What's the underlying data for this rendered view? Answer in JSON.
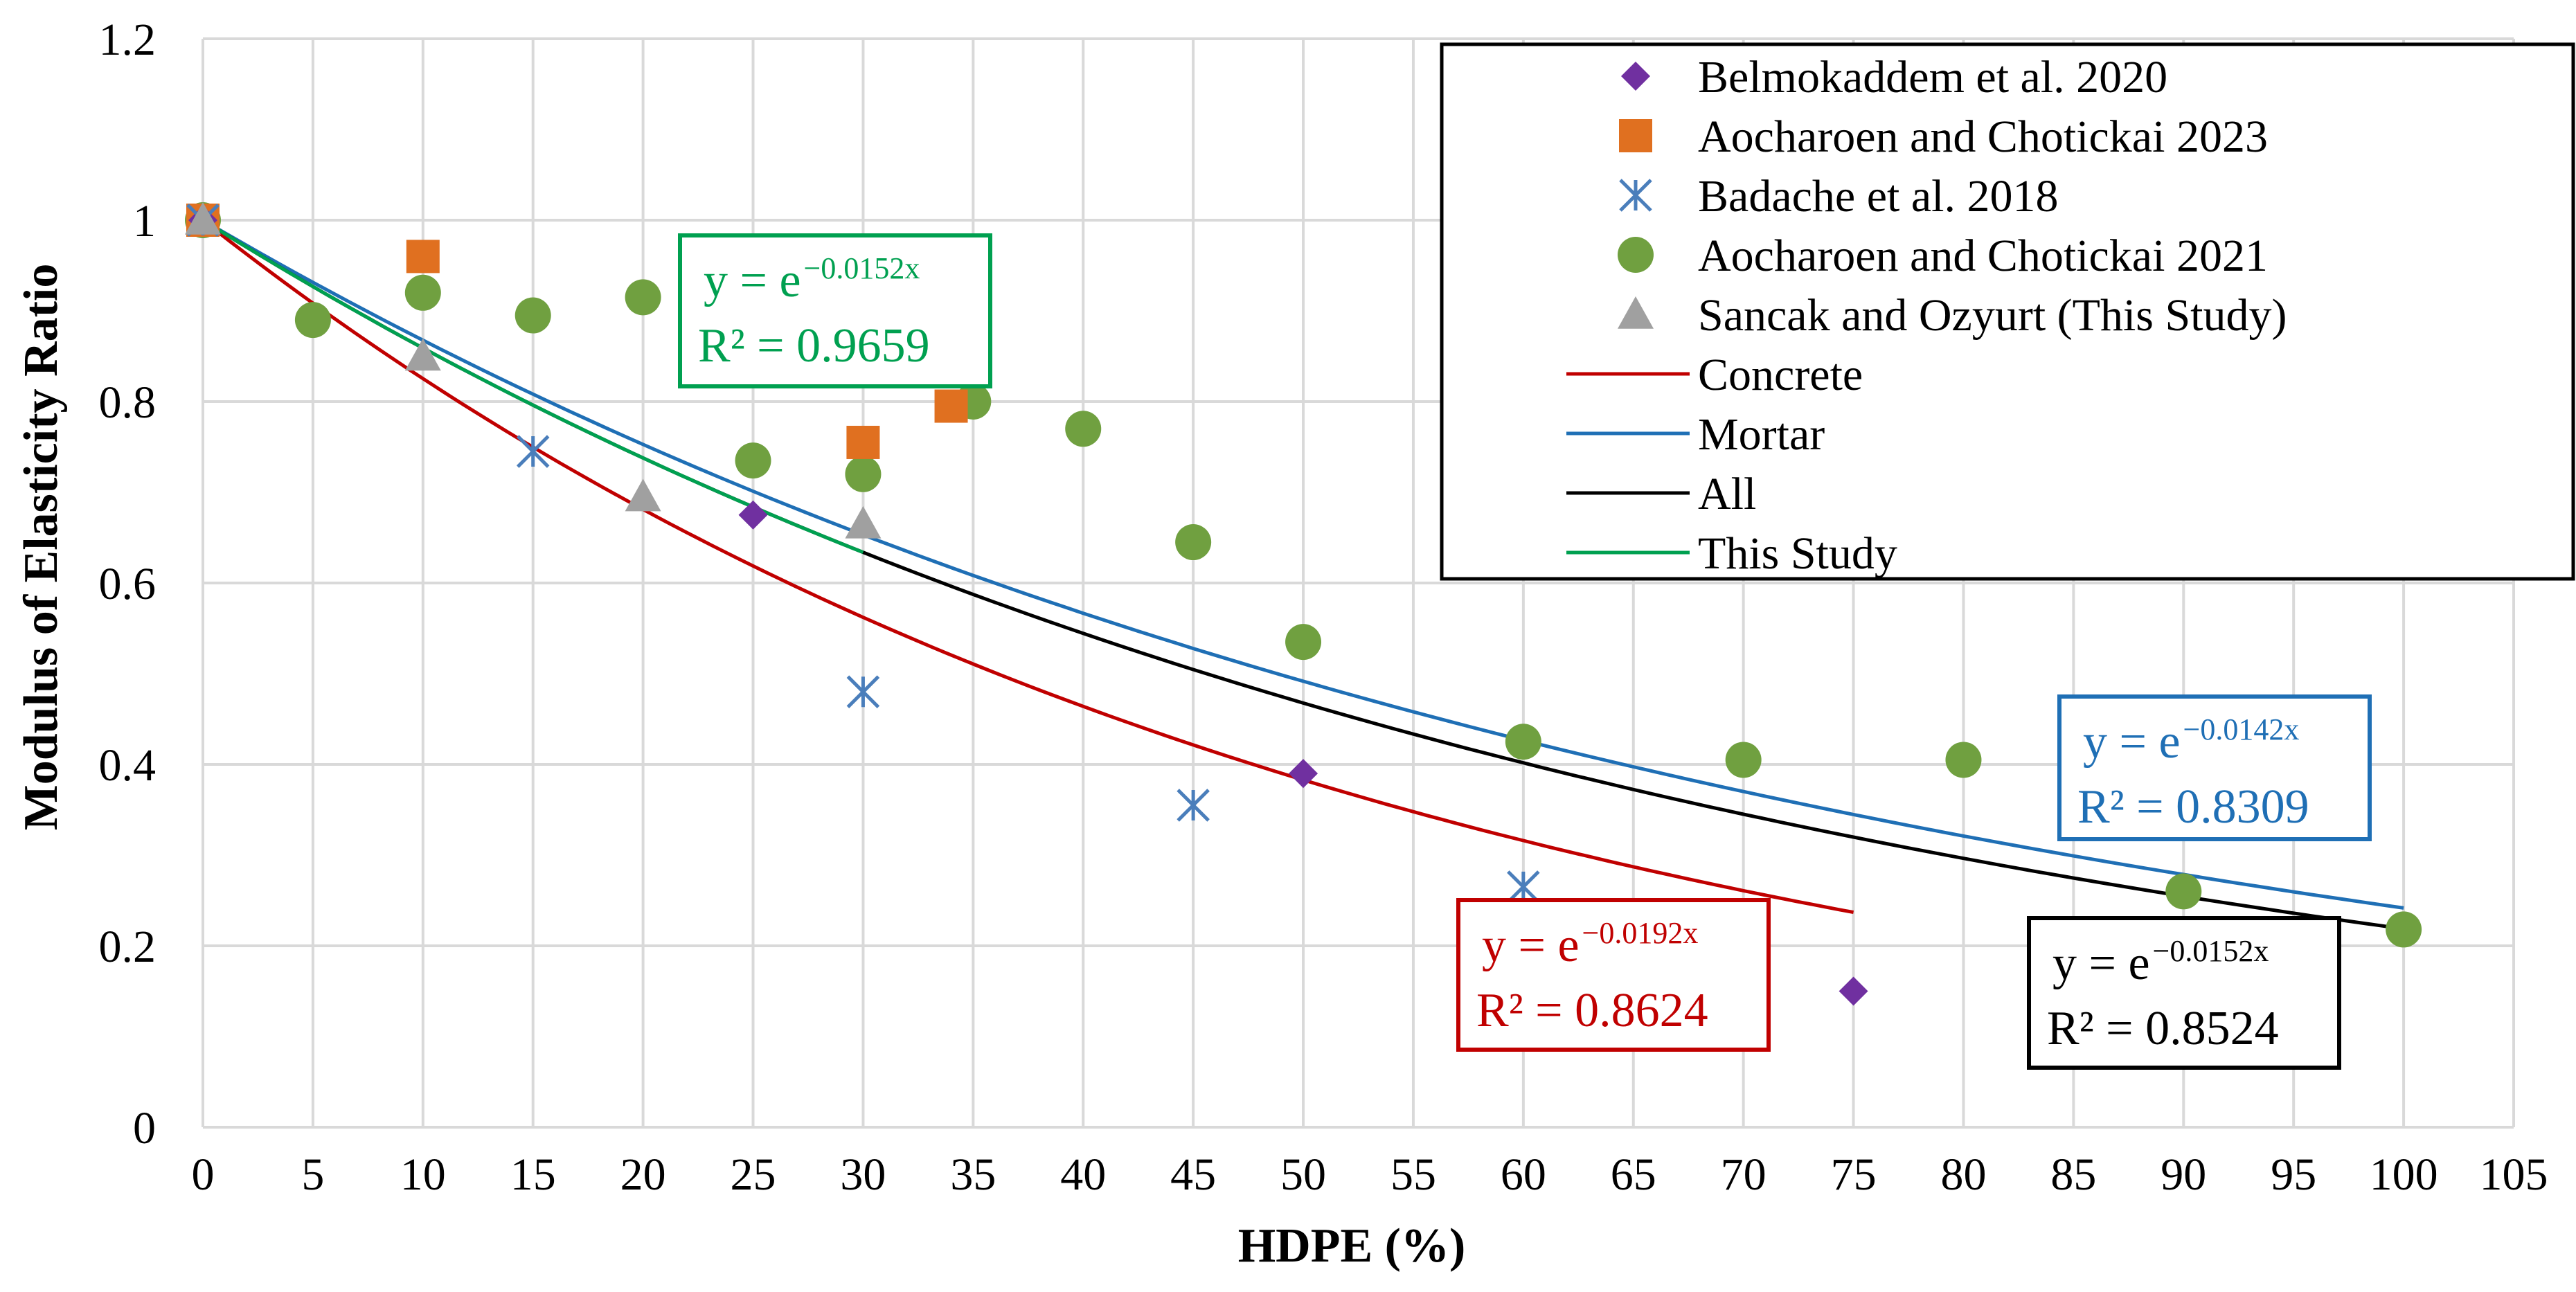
{
  "chart_data": {
    "type": "scatter",
    "title": "",
    "xlabel": "HDPE (%)",
    "ylabel": "Modulus of Elasticity Ratio",
    "xlim": [
      0,
      105
    ],
    "ylim": [
      0,
      1.2
    ],
    "xticks": [
      "0",
      "5",
      "10",
      "15",
      "20",
      "25",
      "30",
      "35",
      "40",
      "45",
      "50",
      "55",
      "60",
      "65",
      "70",
      "75",
      "80",
      "85",
      "90",
      "95",
      "100",
      "105"
    ],
    "yticks": [
      "0",
      "0.2",
      "0.4",
      "0.6",
      "0.8",
      "1",
      "1.2"
    ],
    "grid": true,
    "legend_position": "top-right",
    "series": [
      {
        "name": "Belmokaddem et al. 2020",
        "marker": "diamond",
        "color": "#7030A0",
        "x": [
          0,
          25,
          50,
          75
        ],
        "y": [
          1.0,
          0.675,
          0.39,
          0.15
        ]
      },
      {
        "name": "Aocharoen and Chotickai 2023",
        "marker": "square",
        "color": "#E07020",
        "x": [
          0,
          10,
          30,
          34
        ],
        "y": [
          1.0,
          0.96,
          0.755,
          0.795
        ]
      },
      {
        "name": "Badache et al. 2018",
        "marker": "cross",
        "color": "#4A7EBB",
        "x": [
          0,
          15,
          30,
          45,
          60
        ],
        "y": [
          1.0,
          0.745,
          0.48,
          0.355,
          0.265
        ]
      },
      {
        "name": "Aocharoen and Chotickai 2021",
        "marker": "circle",
        "color": "#70A040",
        "x": [
          0,
          5,
          10,
          15,
          20,
          25,
          30,
          35,
          40,
          45,
          50,
          60,
          70,
          80,
          90,
          100
        ],
        "y": [
          1.0,
          0.89,
          0.92,
          0.895,
          0.915,
          0.735,
          0.72,
          0.8,
          0.77,
          0.645,
          0.535,
          0.425,
          0.405,
          0.405,
          0.26,
          0.218
        ]
      },
      {
        "name": "Sancak and Ozyurt (This Study)",
        "marker": "triangle",
        "color": "#A0A0A0",
        "x": [
          0,
          10,
          20,
          30
        ],
        "y": [
          1.0,
          0.85,
          0.695,
          0.665
        ]
      }
    ],
    "trendlines": [
      {
        "name": "Concrete",
        "color": "#C00000",
        "k": -0.0192,
        "x_range": [
          0,
          75
        ]
      },
      {
        "name": "Mortar",
        "color": "#1F6FB5",
        "k": -0.0142,
        "x_range": [
          0,
          100
        ]
      },
      {
        "name": "All",
        "color": "#000000",
        "k": -0.0152,
        "x_range": [
          0,
          100
        ]
      },
      {
        "name": "This Study",
        "color": "#00A050",
        "k": -0.0152,
        "x_range": [
          0,
          30
        ]
      }
    ],
    "annotations": [
      {
        "id": "this-study",
        "line1_base": "y = e",
        "line1_exp": "−0.0152x",
        "line2": "R² = 0.9659",
        "color": "#00A050"
      },
      {
        "id": "mortar",
        "line1_base": "y = e",
        "line1_exp": "−0.0142x",
        "line2": "R² = 0.8309",
        "color": "#1F6FB5"
      },
      {
        "id": "concrete",
        "line1_base": "y = e",
        "line1_exp": "−0.0192x",
        "line2": "R² = 0.8624",
        "color": "#C00000"
      },
      {
        "id": "all",
        "line1_base": "y = e",
        "line1_exp": "−0.0152x",
        "line2": "R² = 0.8524",
        "color": "#000000"
      }
    ]
  }
}
